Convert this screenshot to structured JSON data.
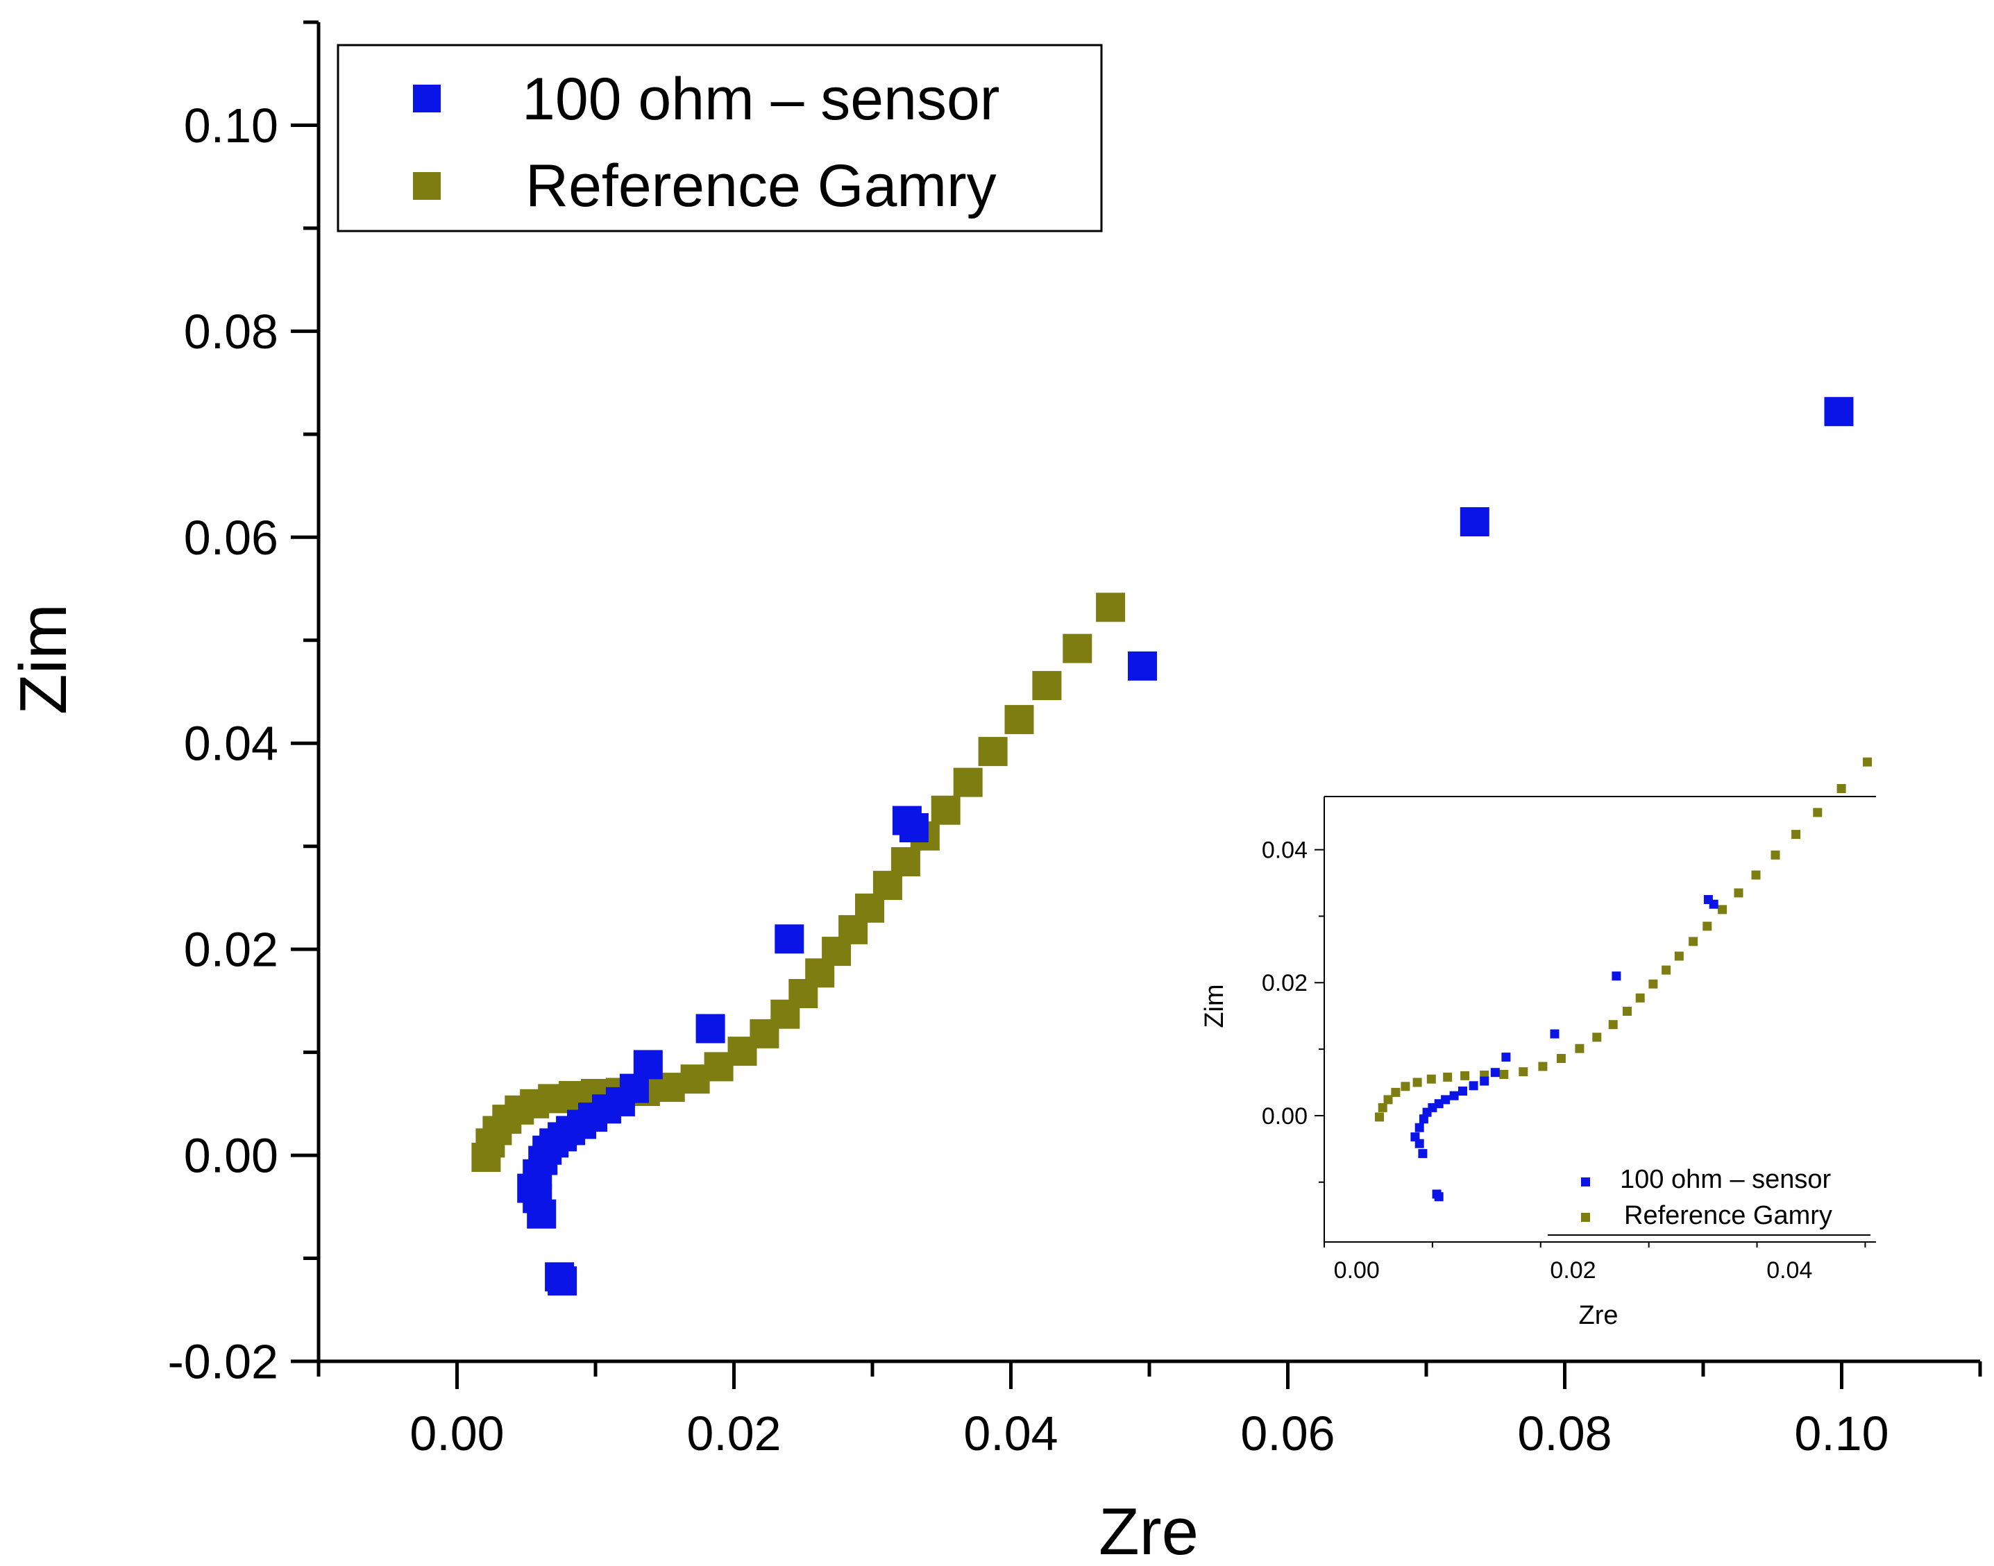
{
  "colors": {
    "sensor": "#0a14e6",
    "reference": "#7d7d12",
    "axis": "#000000",
    "background": "#ffffff"
  },
  "chart_data": [
    {
      "id": "main",
      "type": "scatter",
      "title": "",
      "xlabel": "Zre",
      "ylabel": "Zim",
      "xlim": [
        -0.01,
        0.11
      ],
      "ylim": [
        -0.02,
        0.11
      ],
      "xticks": [
        0.0,
        0.02,
        0.04,
        0.06,
        0.08,
        0.1
      ],
      "xtick_labels": [
        "0.00",
        "0.02",
        "0.04",
        "0.06",
        "0.08",
        "0.10"
      ],
      "yticks": [
        -0.02,
        0.0,
        0.02,
        0.04,
        0.06,
        0.08,
        0.1
      ],
      "ytick_labels": [
        "-0.02",
        "0.00",
        "0.02",
        "0.04",
        "0.06",
        "0.08",
        "0.10"
      ],
      "grid": false,
      "legend_position": "top-left",
      "series": [
        {
          "name": "100 ohm – sensor",
          "color_key": "sensor",
          "x": [
            0.0076,
            0.0074,
            0.0061,
            0.0058,
            0.0054,
            0.0058,
            0.0062,
            0.0065,
            0.007,
            0.0076,
            0.0082,
            0.009,
            0.0098,
            0.0108,
            0.0118,
            0.0128,
            0.0138,
            0.0183,
            0.024,
            0.0325,
            0.033,
            0.0495,
            0.0735,
            0.0998
          ],
          "y": [
            -0.0122,
            -0.0118,
            -0.0057,
            -0.0042,
            -0.0032,
            -0.0018,
            -0.0005,
            0.0005,
            0.0012,
            0.0018,
            0.0024,
            0.003,
            0.0037,
            0.0045,
            0.0052,
            0.0065,
            0.0088,
            0.0123,
            0.021,
            0.0325,
            0.0318,
            0.0475,
            0.0615,
            0.0722
          ]
        },
        {
          "name": "Reference Gamry",
          "color_key": "reference",
          "x": [
            0.0021,
            0.0024,
            0.0029,
            0.0036,
            0.0045,
            0.0056,
            0.0069,
            0.0084,
            0.01,
            0.0118,
            0.0136,
            0.0154,
            0.0172,
            0.0189,
            0.0206,
            0.0222,
            0.0237,
            0.025,
            0.0262,
            0.0274,
            0.0286,
            0.0298,
            0.0311,
            0.0324,
            0.0338,
            0.0353,
            0.0369,
            0.0387,
            0.0406,
            0.0426,
            0.0448,
            0.0472
          ],
          "y": [
            -0.0002,
            0.0012,
            0.0024,
            0.0035,
            0.0044,
            0.005,
            0.0055,
            0.0058,
            0.006,
            0.0061,
            0.0062,
            0.0066,
            0.0074,
            0.0086,
            0.0101,
            0.0118,
            0.0137,
            0.0157,
            0.0177,
            0.0198,
            0.0219,
            0.024,
            0.0262,
            0.0285,
            0.031,
            0.0335,
            0.0362,
            0.0392,
            0.0423,
            0.0456,
            0.0492,
            0.0532
          ]
        }
      ]
    },
    {
      "id": "inset",
      "type": "scatter",
      "title": "",
      "xlabel": "Zre",
      "ylabel": "Zim",
      "xlim": [
        -0.003,
        0.048
      ],
      "ylim": [
        -0.019,
        0.048
      ],
      "xticks": [
        0.0,
        0.02,
        0.04
      ],
      "xtick_labels": [
        "0.00",
        "0.02",
        "0.04"
      ],
      "yticks": [
        0.0,
        0.02,
        0.04
      ],
      "ytick_labels": [
        "0.00",
        "0.02",
        "0.04"
      ],
      "grid": false,
      "legend_position": "bottom-right",
      "series": [
        {
          "name": "100 ohm – sensor",
          "color_key": "sensor",
          "x": [
            0.0076,
            0.0074,
            0.0061,
            0.0058,
            0.0054,
            0.0058,
            0.0062,
            0.0065,
            0.007,
            0.0076,
            0.0082,
            0.009,
            0.0098,
            0.0108,
            0.0118,
            0.0128,
            0.0138,
            0.0183,
            0.024,
            0.0325,
            0.033
          ],
          "y": [
            -0.0122,
            -0.0118,
            -0.0057,
            -0.0042,
            -0.0032,
            -0.0018,
            -0.0005,
            0.0005,
            0.0012,
            0.0018,
            0.0024,
            0.003,
            0.0037,
            0.0045,
            0.0052,
            0.0065,
            0.0088,
            0.0123,
            0.021,
            0.0325,
            0.0318
          ]
        },
        {
          "name": "Reference Gamry",
          "color_key": "reference",
          "x": [
            0.0021,
            0.0024,
            0.0029,
            0.0036,
            0.0045,
            0.0056,
            0.0069,
            0.0084,
            0.01,
            0.0118,
            0.0136,
            0.0154,
            0.0172,
            0.0189,
            0.0206,
            0.0222,
            0.0237,
            0.025,
            0.0262,
            0.0274,
            0.0286,
            0.0298,
            0.0311,
            0.0324,
            0.0338,
            0.0353,
            0.0369,
            0.0387,
            0.0406,
            0.0426,
            0.0448,
            0.0472
          ],
          "y": [
            -0.0002,
            0.0012,
            0.0024,
            0.0035,
            0.0044,
            0.005,
            0.0055,
            0.0058,
            0.006,
            0.0061,
            0.0062,
            0.0066,
            0.0074,
            0.0086,
            0.0101,
            0.0118,
            0.0137,
            0.0157,
            0.0177,
            0.0198,
            0.0219,
            0.024,
            0.0262,
            0.0285,
            0.031,
            0.0335,
            0.0362,
            0.0392,
            0.0423,
            0.0456,
            0.0492,
            0.0532
          ]
        }
      ]
    }
  ]
}
